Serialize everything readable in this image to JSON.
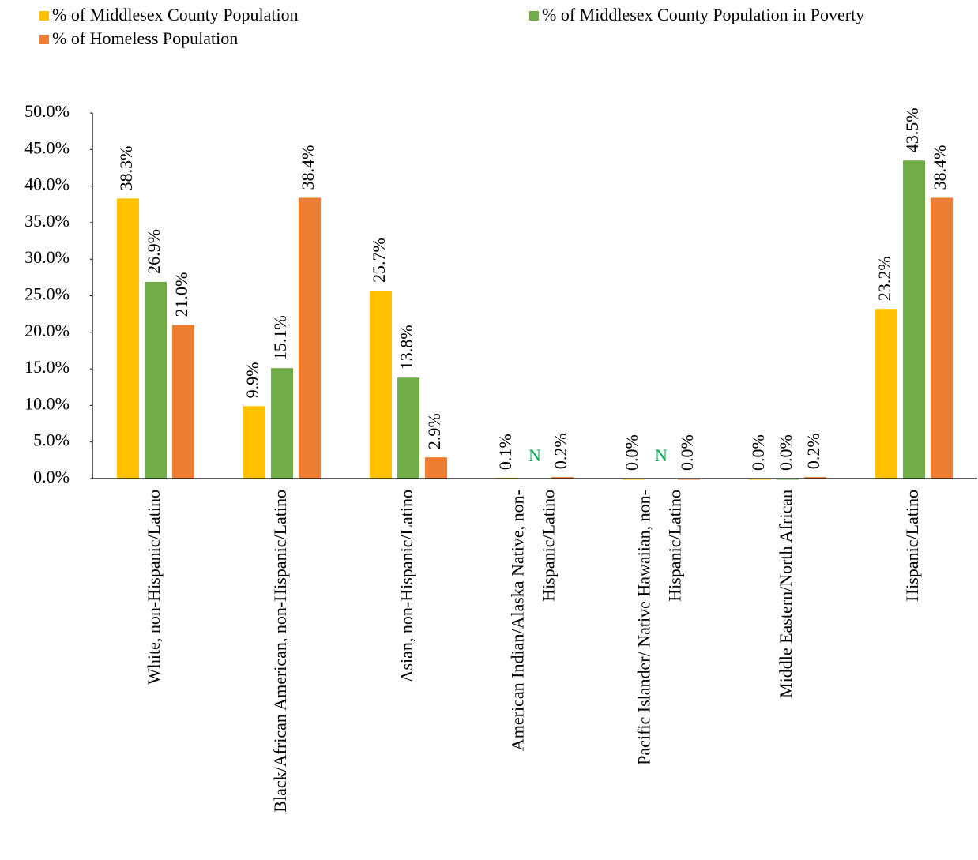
{
  "chart_data": {
    "type": "bar",
    "categories": [
      "White, non-Hispanic/Latino",
      "Black/African American, non-Hispanic/Latino",
      "Asian, non-Hispanic/Latino",
      "American Indian/Alaska Native, non-Hispanic/Latino",
      "Pacific Islander/ Native Hawaiian, non-Hispanic/Latino",
      "Middle Eastern/North African",
      "Hispanic/Latino"
    ],
    "series": [
      {
        "name": "% of Middlesex County Population",
        "color": "#ffc000",
        "values": [
          38.3,
          9.9,
          25.7,
          0.1,
          0.0,
          0.0,
          23.2
        ],
        "value_labels": [
          "38.3%",
          "9.9%",
          "25.7%",
          "0.1%",
          "0.0%",
          "0.0%",
          "23.2%"
        ]
      },
      {
        "name": "% of Middlesex County Population in Poverty",
        "color": "#70ad47",
        "values": [
          26.9,
          15.1,
          13.8,
          null,
          null,
          0.0,
          43.5
        ],
        "value_labels": [
          "26.9%",
          "15.1%",
          "13.8%",
          "N",
          "N",
          "0.0%",
          "43.5%"
        ]
      },
      {
        "name": "% of Homeless Population",
        "color": "#ed7d31",
        "values": [
          21.0,
          38.4,
          2.9,
          0.2,
          0.0,
          0.2,
          38.4
        ],
        "value_labels": [
          "21.0%",
          "38.4%",
          "2.9%",
          "0.2%",
          "0.0%",
          "0.2%",
          "38.4%"
        ]
      }
    ],
    "missing_label_color": "#00b050",
    "ylim": [
      0,
      50
    ],
    "yticks": [
      {
        "value": 0,
        "label": "0.0%"
      },
      {
        "value": 5,
        "label": "5.0%"
      },
      {
        "value": 10,
        "label": "10.0%"
      },
      {
        "value": 15,
        "label": "15.0%"
      },
      {
        "value": 20,
        "label": "20.0%"
      },
      {
        "value": 25,
        "label": "25.0%"
      },
      {
        "value": 30,
        "label": "30.0%"
      },
      {
        "value": 35,
        "label": "35.0%"
      },
      {
        "value": 40,
        "label": "40.0%"
      },
      {
        "value": 45,
        "label": "45.0%"
      },
      {
        "value": 50,
        "label": "50.0%"
      }
    ],
    "grid": false,
    "legend": "top"
  }
}
